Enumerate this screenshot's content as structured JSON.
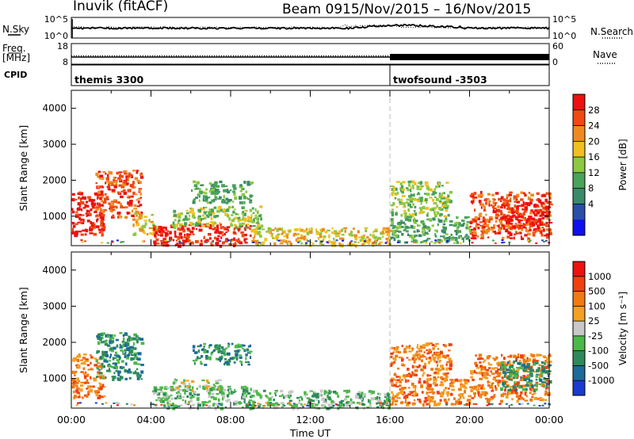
{
  "header": {
    "station": "Inuvik (fitACF)",
    "beam": "Beam 09",
    "dates": "15/Nov/2015 – 16/Nov/2015"
  },
  "side_labels": {
    "nsky": "N.Sky",
    "freq_line1": "Freq.",
    "freq_line2": "[MHz]",
    "cpid": "CPID",
    "nsearch": "N.Search",
    "nave": "Nave"
  },
  "chart_data": [
    {
      "type": "line",
      "name": "noise",
      "left_ticks": [
        "10^5",
        "10^0"
      ],
      "right_ticks": [
        "10^5",
        "10^0"
      ],
      "series": [
        {
          "name": "N.Sky",
          "style": "solid"
        },
        {
          "name": "N.Search",
          "style": "dotted"
        }
      ]
    },
    {
      "type": "line",
      "name": "frequency",
      "left_ticks": [
        "18",
        "8"
      ],
      "right_ticks": [
        "60",
        "0"
      ],
      "series": [
        {
          "name": "Freq.",
          "style": "dotted"
        },
        {
          "name": "Nave",
          "style": "bars"
        }
      ]
    },
    {
      "type": "bar",
      "name": "cpid",
      "segments": [
        {
          "label": "themis 3300",
          "start_hour": 0,
          "end_hour": 16
        },
        {
          "label": "twofsound -3503",
          "start_hour": 16,
          "end_hour": 24
        }
      ]
    },
    {
      "type": "heatmap",
      "name": "power",
      "ylabel": "Slant Range [km]",
      "yticks": [
        "4000",
        "3000",
        "2000",
        "1000"
      ],
      "ylim": [
        180,
        4500
      ],
      "xlim": [
        0,
        24
      ],
      "colorbar_label": "Power [dB]",
      "colorbar_ticks": [
        "28",
        "24",
        "20",
        "16",
        "12",
        "8",
        "4"
      ],
      "colors": [
        "#1010ee",
        "#2a4fa8",
        "#3a8a6a",
        "#4aa35a",
        "#8cc840",
        "#f0c020",
        "#f08a20",
        "#f04a10",
        "#ee1010"
      ],
      "regions_comment": "echo regions",
      "regions": [
        {
          "x0": 0.0,
          "x1": 1.6,
          "y0": 500,
          "y1": 1700,
          "c": 8
        },
        {
          "x0": 1.2,
          "x1": 3.5,
          "y0": 1000,
          "y1": 2300,
          "c": 7
        },
        {
          "x0": 3.0,
          "x1": 4.2,
          "y0": 500,
          "y1": 1100,
          "c": 5
        },
        {
          "x0": 4.0,
          "x1": 9.0,
          "y0": 200,
          "y1": 800,
          "c": 8
        },
        {
          "x0": 5.0,
          "x1": 9.5,
          "y0": 700,
          "y1": 1300,
          "c": 4
        },
        {
          "x0": 6.0,
          "x1": 9.0,
          "y0": 1400,
          "y1": 2000,
          "c": 3
        },
        {
          "x0": 9.0,
          "x1": 16.0,
          "y0": 200,
          "y1": 700,
          "c": 5
        },
        {
          "x0": 16.0,
          "x1": 19.0,
          "y0": 1000,
          "y1": 2000,
          "c": 4
        },
        {
          "x0": 16.0,
          "x1": 20.0,
          "y0": 300,
          "y1": 1000,
          "c": 3
        },
        {
          "x0": 20.0,
          "x1": 24.0,
          "y0": 400,
          "y1": 1700,
          "c": 7
        },
        {
          "x0": 21.5,
          "x1": 24.0,
          "y0": 700,
          "y1": 1500,
          "c": 8
        }
      ]
    },
    {
      "type": "heatmap",
      "name": "velocity",
      "ylabel": "Slant Range [km]",
      "yticks": [
        "4000",
        "3000",
        "2000",
        "1000"
      ],
      "ylim": [
        180,
        4500
      ],
      "xlim": [
        0,
        24
      ],
      "xticks": [
        "00:00",
        "04:00",
        "08:00",
        "12:00",
        "16:00",
        "20:00",
        "00:00"
      ],
      "xlabel": "Time UT",
      "colorbar_label": "Velocity [m s⁻¹]",
      "colorbar_ticks": [
        "1000",
        "500",
        "100",
        "25",
        "-25",
        "-100",
        "-500",
        "-1000"
      ],
      "colors": [
        "#1a3ad0",
        "#1e6a9a",
        "#2e8a5a",
        "#4cb84a",
        "#c8c8c8",
        "#f4a020",
        "#f07a10",
        "#f04010",
        "#ee1010"
      ],
      "regions": [
        {
          "x0": 0.0,
          "x1": 1.6,
          "y0": 500,
          "y1": 1700,
          "c": 6
        },
        {
          "x0": 1.2,
          "x1": 3.5,
          "y0": 1000,
          "y1": 2300,
          "c": 2
        },
        {
          "x0": 4.0,
          "x1": 9.0,
          "y0": 200,
          "y1": 800,
          "c": 3
        },
        {
          "x0": 5.0,
          "x1": 7.5,
          "y0": 700,
          "y1": 1000,
          "c": 4
        },
        {
          "x0": 6.0,
          "x1": 9.0,
          "y0": 1400,
          "y1": 2000,
          "c": 2
        },
        {
          "x0": 9.0,
          "x1": 16.0,
          "y0": 200,
          "y1": 700,
          "c": 3
        },
        {
          "x0": 16.0,
          "x1": 19.0,
          "y0": 1000,
          "y1": 2000,
          "c": 6
        },
        {
          "x0": 16.0,
          "x1": 20.0,
          "y0": 300,
          "y1": 1000,
          "c": 6
        },
        {
          "x0": 20.0,
          "x1": 24.0,
          "y0": 400,
          "y1": 1700,
          "c": 6
        },
        {
          "x0": 21.5,
          "x1": 24.0,
          "y0": 700,
          "y1": 1500,
          "c": 2
        }
      ]
    }
  ]
}
